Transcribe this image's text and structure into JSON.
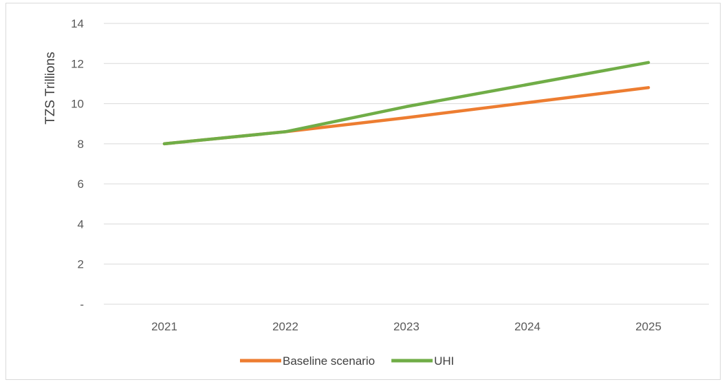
{
  "caption": "",
  "chart_data": {
    "type": "line",
    "title": "",
    "xlabel": "",
    "ylabel": "TZS Trillions",
    "categories": [
      "2021",
      "2022",
      "2023",
      "2024",
      "2025"
    ],
    "y_tick_labels": [
      "-",
      "2",
      "4",
      "6",
      "8",
      "10",
      "12",
      "14"
    ],
    "ylim": [
      0,
      14
    ],
    "grid": "horizontal",
    "legend_position": "bottom",
    "series": [
      {
        "name": "Baseline scenario",
        "color": "#ED7D31",
        "values": [
          8.0,
          8.6,
          9.3,
          10.05,
          10.8
        ]
      },
      {
        "name": "UHI",
        "color": "#70AD47",
        "values": [
          8.0,
          8.6,
          9.85,
          10.95,
          12.05
        ]
      }
    ]
  }
}
